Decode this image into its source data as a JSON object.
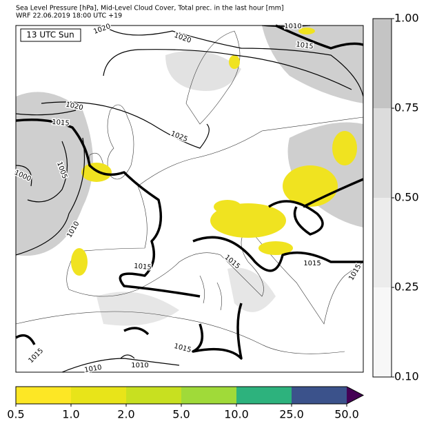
{
  "header": {
    "line1": "Sea Level Pressure [hPa], Mid-Level Cloud Cover, Total prec. in the last hour [mm]",
    "line2": "WRF 22.06.2019 18:00 UTC +19"
  },
  "map": {
    "time_label": "13 UTC Sun",
    "isobar_labels": [
      "1020",
      "1020",
      "1015",
      "1010",
      "1020",
      "1015",
      "1025",
      "1005",
      "1000",
      "1010",
      "1015",
      "1015",
      "1015",
      "1015",
      "1015",
      "1010",
      "1010",
      "1015"
    ]
  },
  "cloud_colorbar": {
    "labels": [
      "1.00",
      "0.75",
      "0.50",
      "0.25",
      "0.10"
    ],
    "colors": [
      "#c4c4c4",
      "#dcdcdc",
      "#ececec",
      "#f7f7f7"
    ]
  },
  "precip_colorbar": {
    "labels": [
      "0.5",
      "1.0",
      "2.0",
      "5.0",
      "10.0",
      "25.0",
      "50.0"
    ],
    "colors": [
      "#fde725",
      "#e8e419",
      "#c8e020",
      "#a0da39",
      "#2db27d",
      "#3b528b",
      "#440154"
    ]
  }
}
